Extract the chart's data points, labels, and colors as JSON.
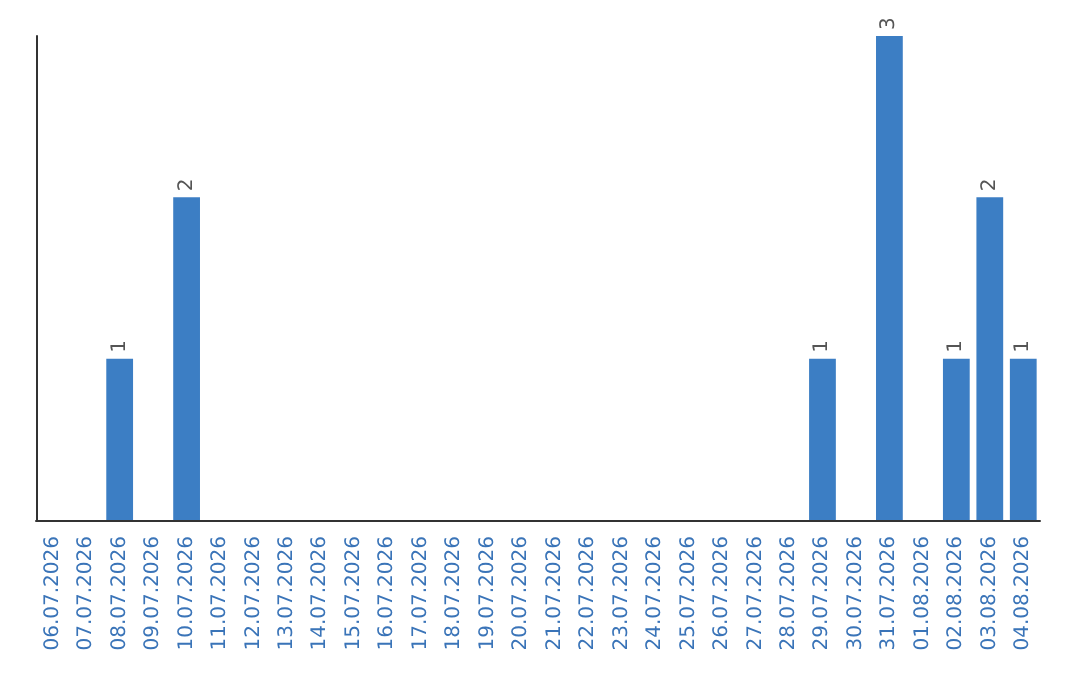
{
  "chart_data": {
    "type": "bar",
    "categories": [
      "06.07.2026",
      "07.07.2026",
      "08.07.2026",
      "09.07.2026",
      "10.07.2026",
      "11.07.2026",
      "12.07.2026",
      "13.07.2026",
      "14.07.2026",
      "15.07.2026",
      "16.07.2026",
      "17.07.2026",
      "18.07.2026",
      "19.07.2026",
      "20.07.2026",
      "21.07.2026",
      "22.07.2026",
      "23.07.2026",
      "24.07.2026",
      "25.07.2026",
      "26.07.2026",
      "27.07.2026",
      "28.07.2026",
      "29.07.2026",
      "30.07.2026",
      "31.07.2026",
      "01.08.2026",
      "02.08.2026",
      "03.08.2026",
      "04.08.2026"
    ],
    "values": [
      0,
      0,
      1,
      0,
      2,
      0,
      0,
      0,
      0,
      0,
      0,
      0,
      0,
      0,
      0,
      0,
      0,
      0,
      0,
      0,
      0,
      0,
      0,
      1,
      0,
      3,
      0,
      1,
      2,
      1
    ],
    "value_labels": [
      null,
      null,
      "1",
      null,
      "2",
      null,
      null,
      null,
      null,
      null,
      null,
      null,
      null,
      null,
      null,
      null,
      null,
      null,
      null,
      null,
      null,
      null,
      null,
      "1",
      null,
      "3",
      null,
      "1",
      "2",
      "1"
    ],
    "color": "#3c7ec4",
    "tick_labels": "x"
  }
}
